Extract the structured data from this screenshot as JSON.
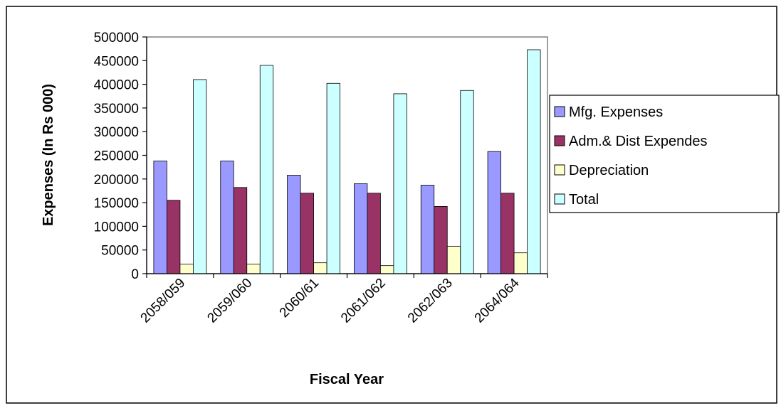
{
  "chart_data": {
    "type": "bar",
    "title": "",
    "xlabel": "Fiscal Year",
    "ylabel": "Expenses (In Rs 000)",
    "ylim": [
      0,
      500000
    ],
    "yticks": [
      "0",
      "50000",
      "100000",
      "150000",
      "200000",
      "250000",
      "300000",
      "350000",
      "400000",
      "450000",
      "500000"
    ],
    "categories": [
      "2058/059",
      "2059/060",
      "2060/61",
      "2061/062",
      "2062/063",
      "2064/064"
    ],
    "legend_position": "right",
    "grid": false,
    "series": [
      {
        "name": "Mfg. Expenses",
        "color": "#9999ff",
        "values": [
          238000,
          238000,
          208000,
          190000,
          187000,
          258000
        ]
      },
      {
        "name": "Adm.& Dist Expendes",
        "color": "#993366",
        "values": [
          155000,
          182000,
          170000,
          170000,
          142000,
          170000
        ]
      },
      {
        "name": "Depreciation",
        "color": "#ffffcc",
        "values": [
          20000,
          20000,
          23000,
          17000,
          58000,
          44000
        ]
      },
      {
        "name": "Total",
        "color": "#ccffff",
        "values": [
          410000,
          440000,
          402000,
          380000,
          387000,
          473000
        ]
      }
    ]
  }
}
